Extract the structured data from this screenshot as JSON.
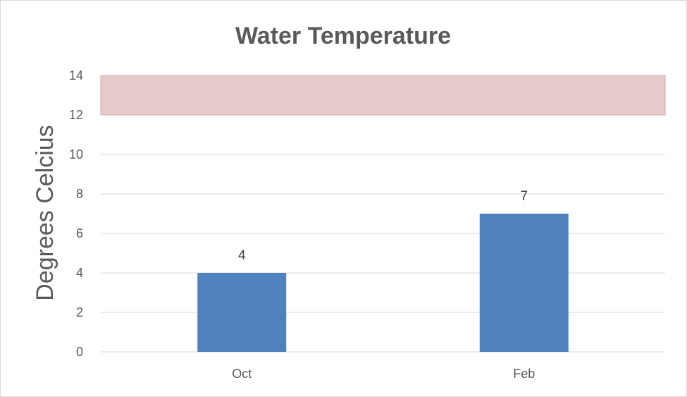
{
  "chart_data": {
    "type": "bar",
    "title": "Water Temperature",
    "xlabel": "",
    "ylabel": "Degrees Celcius",
    "categories": [
      "Oct",
      "Feb"
    ],
    "values": [
      4,
      7
    ],
    "ylim": [
      0,
      14
    ],
    "yticks": [
      0,
      2,
      4,
      6,
      8,
      10,
      12,
      14
    ],
    "data_labels": [
      "4",
      "7"
    ],
    "shaded_band": [
      12,
      14
    ],
    "grid": true,
    "colors": {
      "bar": "#4f81bd",
      "band": "#e6cacb",
      "band_edge": "#d7a9aa",
      "grid": "#d9d9d9"
    }
  }
}
